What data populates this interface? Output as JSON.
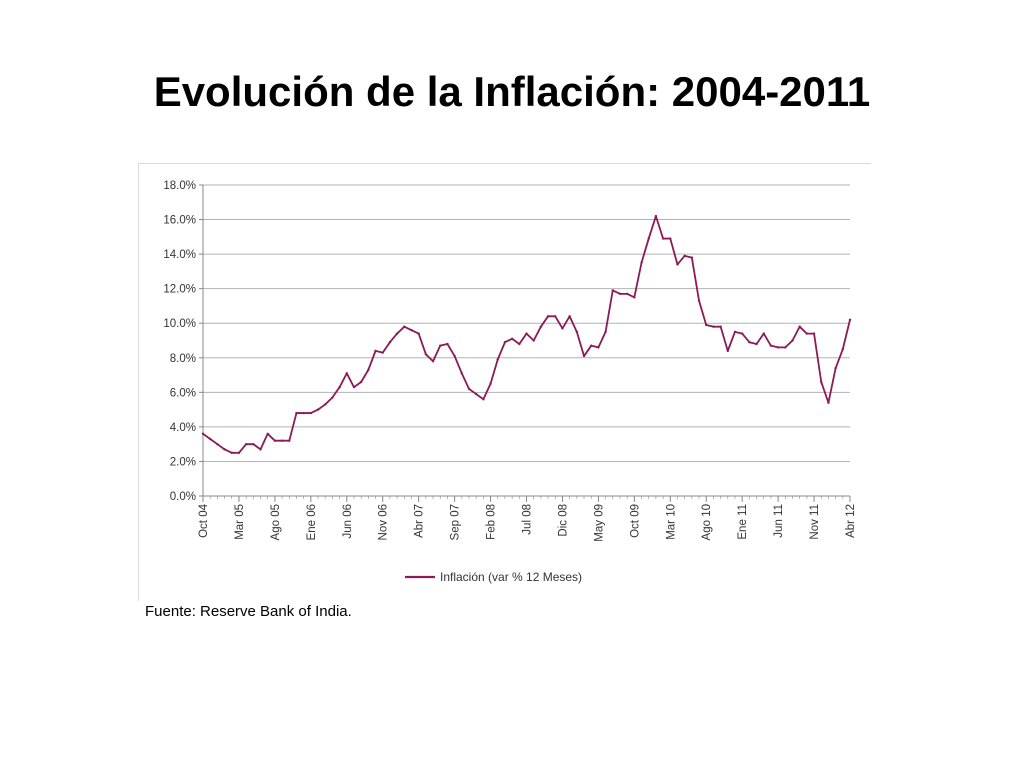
{
  "slide": {
    "title": "Evolución de la Inflación: 2004-2011",
    "source": "Fuente: Reserve Bank of India."
  },
  "colors": {
    "series": "#8b1a5a",
    "grid": "#b3b3b3",
    "axis": "#888888"
  },
  "chart_data": {
    "type": "line",
    "title": "",
    "xlabel": "",
    "ylabel": "",
    "ylim": [
      0,
      18
    ],
    "y_ticks": [
      "0.0%",
      "2.0%",
      "4.0%",
      "6.0%",
      "8.0%",
      "10.0%",
      "12.0%",
      "14.0%",
      "16.0%",
      "18.0%"
    ],
    "x_ticks": [
      "Oct 04",
      "Mar 05",
      "Ago 05",
      "Ene 06",
      "Jun 06",
      "Nov 06",
      "Abr 07",
      "Sep 07",
      "Feb 08",
      "Jul 08",
      "Dic 08",
      "May 09",
      "Oct 09",
      "Mar 10",
      "Ago 10",
      "Ene 11",
      "Jun 11",
      "Nov 11",
      "Abr 12"
    ],
    "grid": true,
    "legend_position": "bottom",
    "series": [
      {
        "name": "Inflación (var % 12 Meses)",
        "values": [
          3.6,
          3.3,
          3.0,
          2.7,
          2.5,
          2.5,
          3.0,
          3.0,
          2.7,
          3.6,
          3.2,
          3.2,
          3.2,
          4.8,
          4.8,
          4.8,
          5.0,
          5.3,
          5.7,
          6.3,
          7.1,
          6.3,
          6.6,
          7.3,
          8.4,
          8.3,
          8.9,
          9.4,
          9.8,
          9.6,
          9.4,
          8.2,
          7.8,
          8.7,
          8.8,
          8.1,
          7.1,
          6.2,
          5.9,
          5.6,
          6.5,
          7.9,
          8.9,
          9.1,
          8.8,
          9.4,
          9.0,
          9.8,
          10.4,
          10.4,
          9.7,
          10.4,
          9.5,
          8.1,
          8.7,
          8.6,
          9.5,
          11.9,
          11.7,
          11.7,
          11.5,
          13.5,
          14.9,
          16.2,
          14.9,
          14.9,
          13.4,
          13.9,
          13.8,
          11.3,
          9.9,
          9.8,
          9.8,
          8.4,
          9.5,
          9.4,
          8.9,
          8.8,
          9.4,
          8.7,
          8.6,
          8.6,
          9.0,
          9.8,
          9.4,
          9.4,
          6.6,
          5.4,
          7.4,
          8.5,
          10.2
        ]
      }
    ]
  }
}
